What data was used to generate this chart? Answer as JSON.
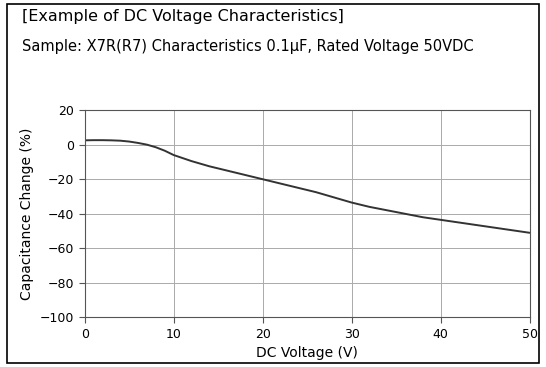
{
  "title_line1": "[Example of DC Voltage Characteristics]",
  "title_line2": "Sample: X7R(R7) Characteristics 0.1μF, Rated Voltage 50VDC",
  "xlabel": "DC Voltage (V)",
  "ylabel": "Capacitance Change (%)",
  "xlim": [
    0,
    50
  ],
  "ylim": [
    -100,
    20
  ],
  "xticks": [
    0,
    10,
    20,
    30,
    40,
    50
  ],
  "yticks": [
    -100,
    -80,
    -60,
    -40,
    -20,
    0,
    20
  ],
  "line_color": "#333333",
  "line_width": 1.4,
  "grid_color": "#aaaaaa",
  "background_color": "#ffffff",
  "border_color": "#000000",
  "curve_x": [
    0,
    1,
    2,
    3,
    4,
    5,
    6,
    7,
    8,
    9,
    10,
    12,
    14,
    16,
    18,
    20,
    22,
    24,
    26,
    28,
    30,
    32,
    34,
    36,
    38,
    40,
    42,
    44,
    46,
    48,
    50
  ],
  "curve_y": [
    2.5,
    2.6,
    2.6,
    2.5,
    2.3,
    1.8,
    1.0,
    0.0,
    -1.5,
    -3.5,
    -6.0,
    -9.5,
    -12.5,
    -15.0,
    -17.5,
    -20.0,
    -22.5,
    -25.0,
    -27.5,
    -30.5,
    -33.5,
    -36.0,
    -38.0,
    -40.0,
    -42.0,
    -43.5,
    -45.0,
    -46.5,
    -48.0,
    -49.5,
    -51.0
  ],
  "title_fontsize": 11.5,
  "subtitle_fontsize": 10.5,
  "axis_fontsize": 10,
  "tick_fontsize": 9
}
